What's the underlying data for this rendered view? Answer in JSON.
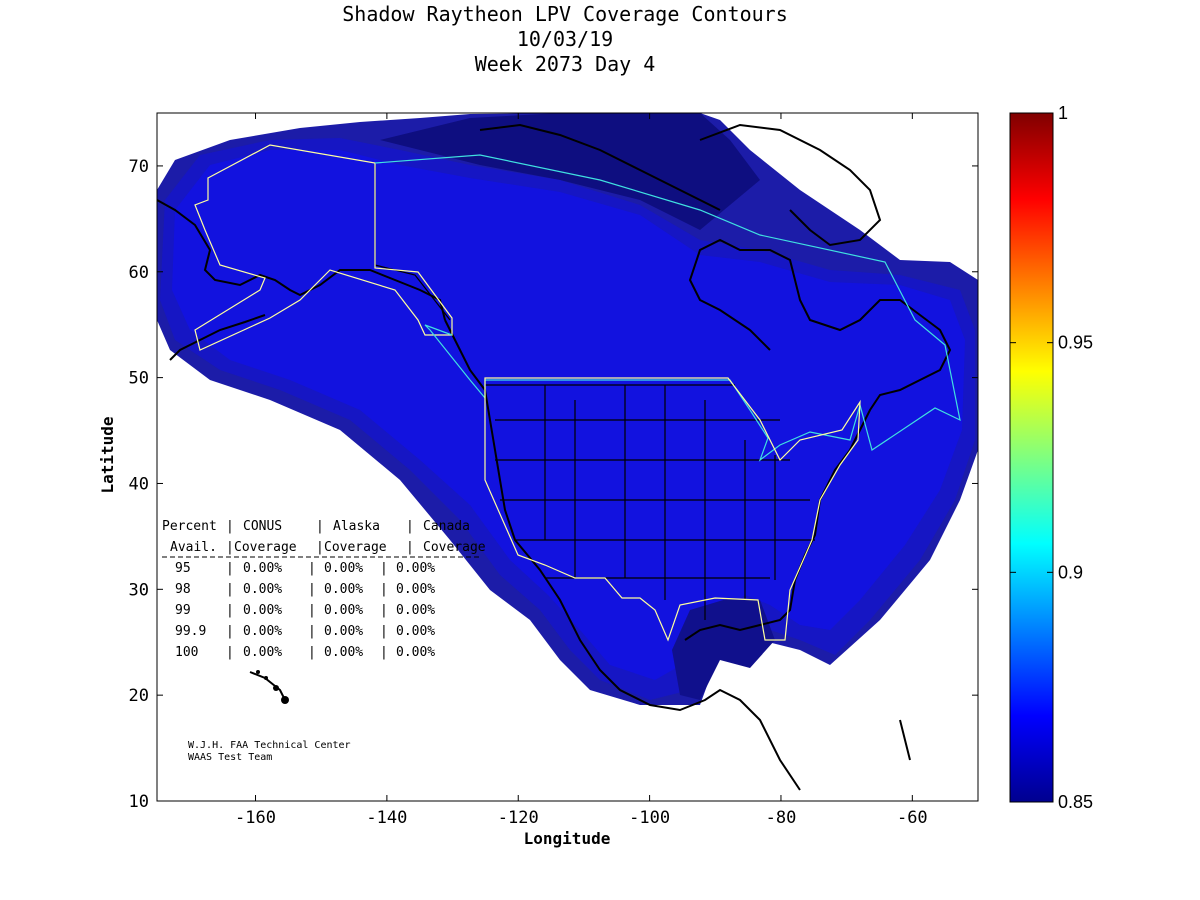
{
  "title": {
    "line1": "Shadow Raytheon LPV Coverage Contours",
    "line2": "10/03/19",
    "line3": "Week 2073 Day 4"
  },
  "map": {
    "xlabel": "Longitude",
    "ylabel": "Latitude",
    "xlim": [
      -175,
      -50
    ],
    "ylim": [
      10,
      75
    ],
    "x_ticks": [
      -160,
      -140,
      -120,
      -100,
      -80,
      -60
    ],
    "y_ticks": [
      10,
      20,
      30,
      40,
      50,
      60,
      70
    ],
    "coverage_colors": {
      "outer": "#1a1a9e",
      "mid": "#1515c0",
      "inner": "#1010dd",
      "dark": "#0d0d85"
    }
  },
  "table": {
    "header1": [
      "Percent",
      "CONUS",
      "Alaska",
      "Canada"
    ],
    "header2": [
      "Avail.",
      "Coverage",
      "Coverage",
      "Coverage"
    ],
    "rows": [
      [
        "95",
        "0.00%",
        "0.00%",
        "0.00%"
      ],
      [
        "98",
        "0.00%",
        "0.00%",
        "0.00%"
      ],
      [
        "99",
        "0.00%",
        "0.00%",
        "0.00%"
      ],
      [
        "99.9",
        "0.00%",
        "0.00%",
        "0.00%"
      ],
      [
        "100",
        "0.00%",
        "0.00%",
        "0.00%"
      ]
    ]
  },
  "credit": {
    "line1": "W.J.H. FAA Technical Center",
    "line2": "WAAS Test Team"
  },
  "colorbar": {
    "min": 0.85,
    "max": 1,
    "ticks": [
      "1",
      "0.95",
      "0.9",
      "0.85"
    ]
  }
}
